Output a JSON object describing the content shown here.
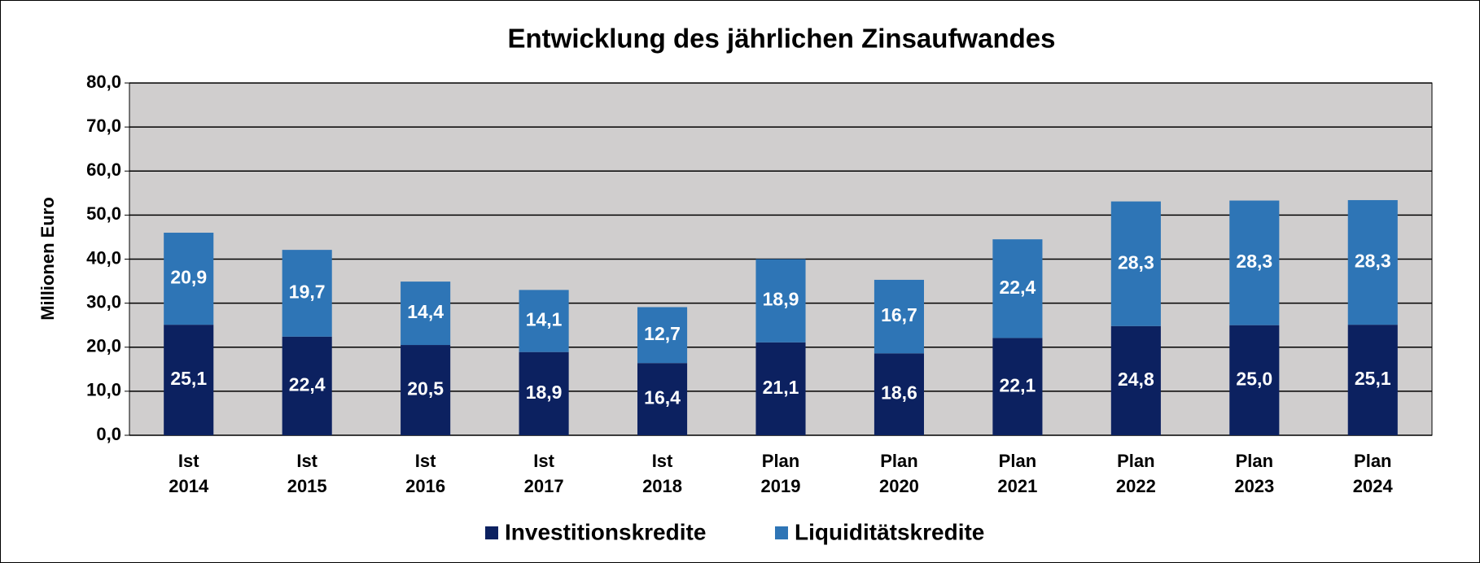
{
  "chart_data": {
    "type": "stacked_bar",
    "title": "Entwicklung des jährlichen Zinsaufwandes",
    "y_axis_label": "Millionen Euro",
    "categories": [
      [
        "Ist",
        "2014"
      ],
      [
        "Ist",
        "2015"
      ],
      [
        "Ist",
        "2016"
      ],
      [
        "Ist",
        "2017"
      ],
      [
        "Ist",
        "2018"
      ],
      [
        "Plan",
        "2019"
      ],
      [
        "Plan",
        "2020"
      ],
      [
        "Plan",
        "2021"
      ],
      [
        "Plan",
        "2022"
      ],
      [
        "Plan",
        "2023"
      ],
      [
        "Plan",
        "2024"
      ]
    ],
    "series": [
      {
        "name": "Investitionskredite",
        "color": "#0c2160",
        "values": [
          25.1,
          22.4,
          20.5,
          18.9,
          16.4,
          21.1,
          18.6,
          22.1,
          24.8,
          25.0,
          25.1
        ],
        "value_labels": [
          "25,1",
          "22,4",
          "20,5",
          "18,9",
          "16,4",
          "21,1",
          "18,6",
          "22,1",
          "24,8",
          "25,0",
          "25,1"
        ]
      },
      {
        "name": "Liquiditätskredite",
        "color": "#2e75b6",
        "values": [
          20.9,
          19.7,
          14.4,
          14.1,
          12.7,
          18.9,
          16.7,
          22.4,
          28.3,
          28.3,
          28.3
        ],
        "value_labels": [
          "20,9",
          "19,7",
          "14,4",
          "14,1",
          "12,7",
          "18,9",
          "16,7",
          "22,4",
          "28,3",
          "28,3",
          "28,3"
        ]
      }
    ],
    "ylim": [
      0,
      80
    ],
    "yticks": [
      {
        "value": 0,
        "label": "0,0"
      },
      {
        "value": 10,
        "label": "10,0"
      },
      {
        "value": 20,
        "label": "20,0"
      },
      {
        "value": 30,
        "label": "30,0"
      },
      {
        "value": 40,
        "label": "40,0"
      },
      {
        "value": 50,
        "label": "50,0"
      },
      {
        "value": 60,
        "label": "60,0"
      },
      {
        "value": 70,
        "label": "70,0"
      },
      {
        "value": 80,
        "label": "80,0"
      }
    ],
    "grid": true,
    "legend": "bottom"
  }
}
